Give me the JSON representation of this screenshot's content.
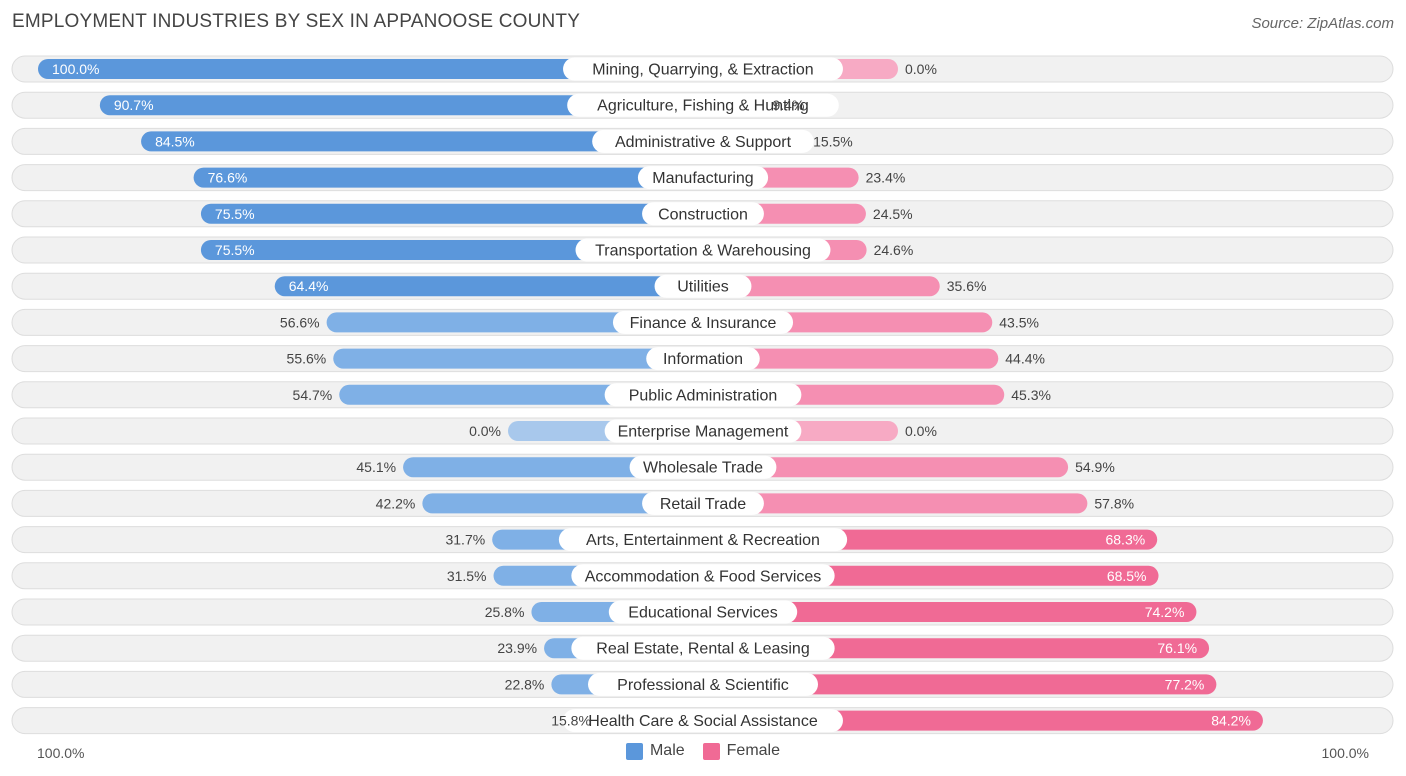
{
  "title": "EMPLOYMENT INDUSTRIES BY SEX IN APPANOOSE COUNTY",
  "source": "Source: ZipAtlas.com",
  "colors": {
    "male_strong": "#5b97db",
    "male_light": "#a8c8ec",
    "female_strong": "#f06a95",
    "female_light": "#f7aac4",
    "row_bg": "#f1f1f1",
    "row_border": "#dddddd"
  },
  "legend": {
    "male": "Male",
    "female": "Female"
  },
  "axis": {
    "left_label": "100.0%",
    "right_label": "100.0%"
  },
  "chart_data": {
    "type": "bar",
    "orientation": "horizontal-diverging",
    "title": "EMPLOYMENT INDUSTRIES BY SEX IN APPANOOSE COUNTY",
    "xlim": [
      -100,
      100
    ],
    "categories": [
      "Mining, Quarrying, & Extraction",
      "Agriculture, Fishing & Hunting",
      "Administrative & Support",
      "Manufacturing",
      "Construction",
      "Transportation & Warehousing",
      "Utilities",
      "Finance & Insurance",
      "Information",
      "Public Administration",
      "Enterprise Management",
      "Wholesale Trade",
      "Retail Trade",
      "Arts, Entertainment & Recreation",
      "Accommodation & Food Services",
      "Educational Services",
      "Real Estate, Rental & Leasing",
      "Professional & Scientific",
      "Health Care & Social Assistance"
    ],
    "series": [
      {
        "name": "Male",
        "values": [
          100.0,
          90.7,
          84.5,
          76.6,
          75.5,
          75.5,
          64.4,
          56.6,
          55.6,
          54.7,
          0.0,
          45.1,
          42.2,
          31.7,
          31.5,
          25.8,
          23.9,
          22.8,
          15.8
        ],
        "labels": [
          "100.0%",
          "90.7%",
          "84.5%",
          "76.6%",
          "75.5%",
          "75.5%",
          "64.4%",
          "56.6%",
          "55.6%",
          "54.7%",
          "0.0%",
          "45.1%",
          "42.2%",
          "31.7%",
          "31.5%",
          "25.8%",
          "23.9%",
          "22.8%",
          "15.8%"
        ]
      },
      {
        "name": "Female",
        "values": [
          0.0,
          9.4,
          15.5,
          23.4,
          24.5,
          24.6,
          35.6,
          43.5,
          44.4,
          45.3,
          0.0,
          54.9,
          57.8,
          68.3,
          68.5,
          74.2,
          76.1,
          77.2,
          84.2
        ],
        "labels": [
          "0.0%",
          "9.4%",
          "15.5%",
          "23.4%",
          "24.5%",
          "24.6%",
          "35.6%",
          "43.5%",
          "44.4%",
          "45.3%",
          "0.0%",
          "54.9%",
          "57.8%",
          "68.3%",
          "68.5%",
          "74.2%",
          "76.1%",
          "77.2%",
          "84.2%"
        ]
      }
    ]
  }
}
